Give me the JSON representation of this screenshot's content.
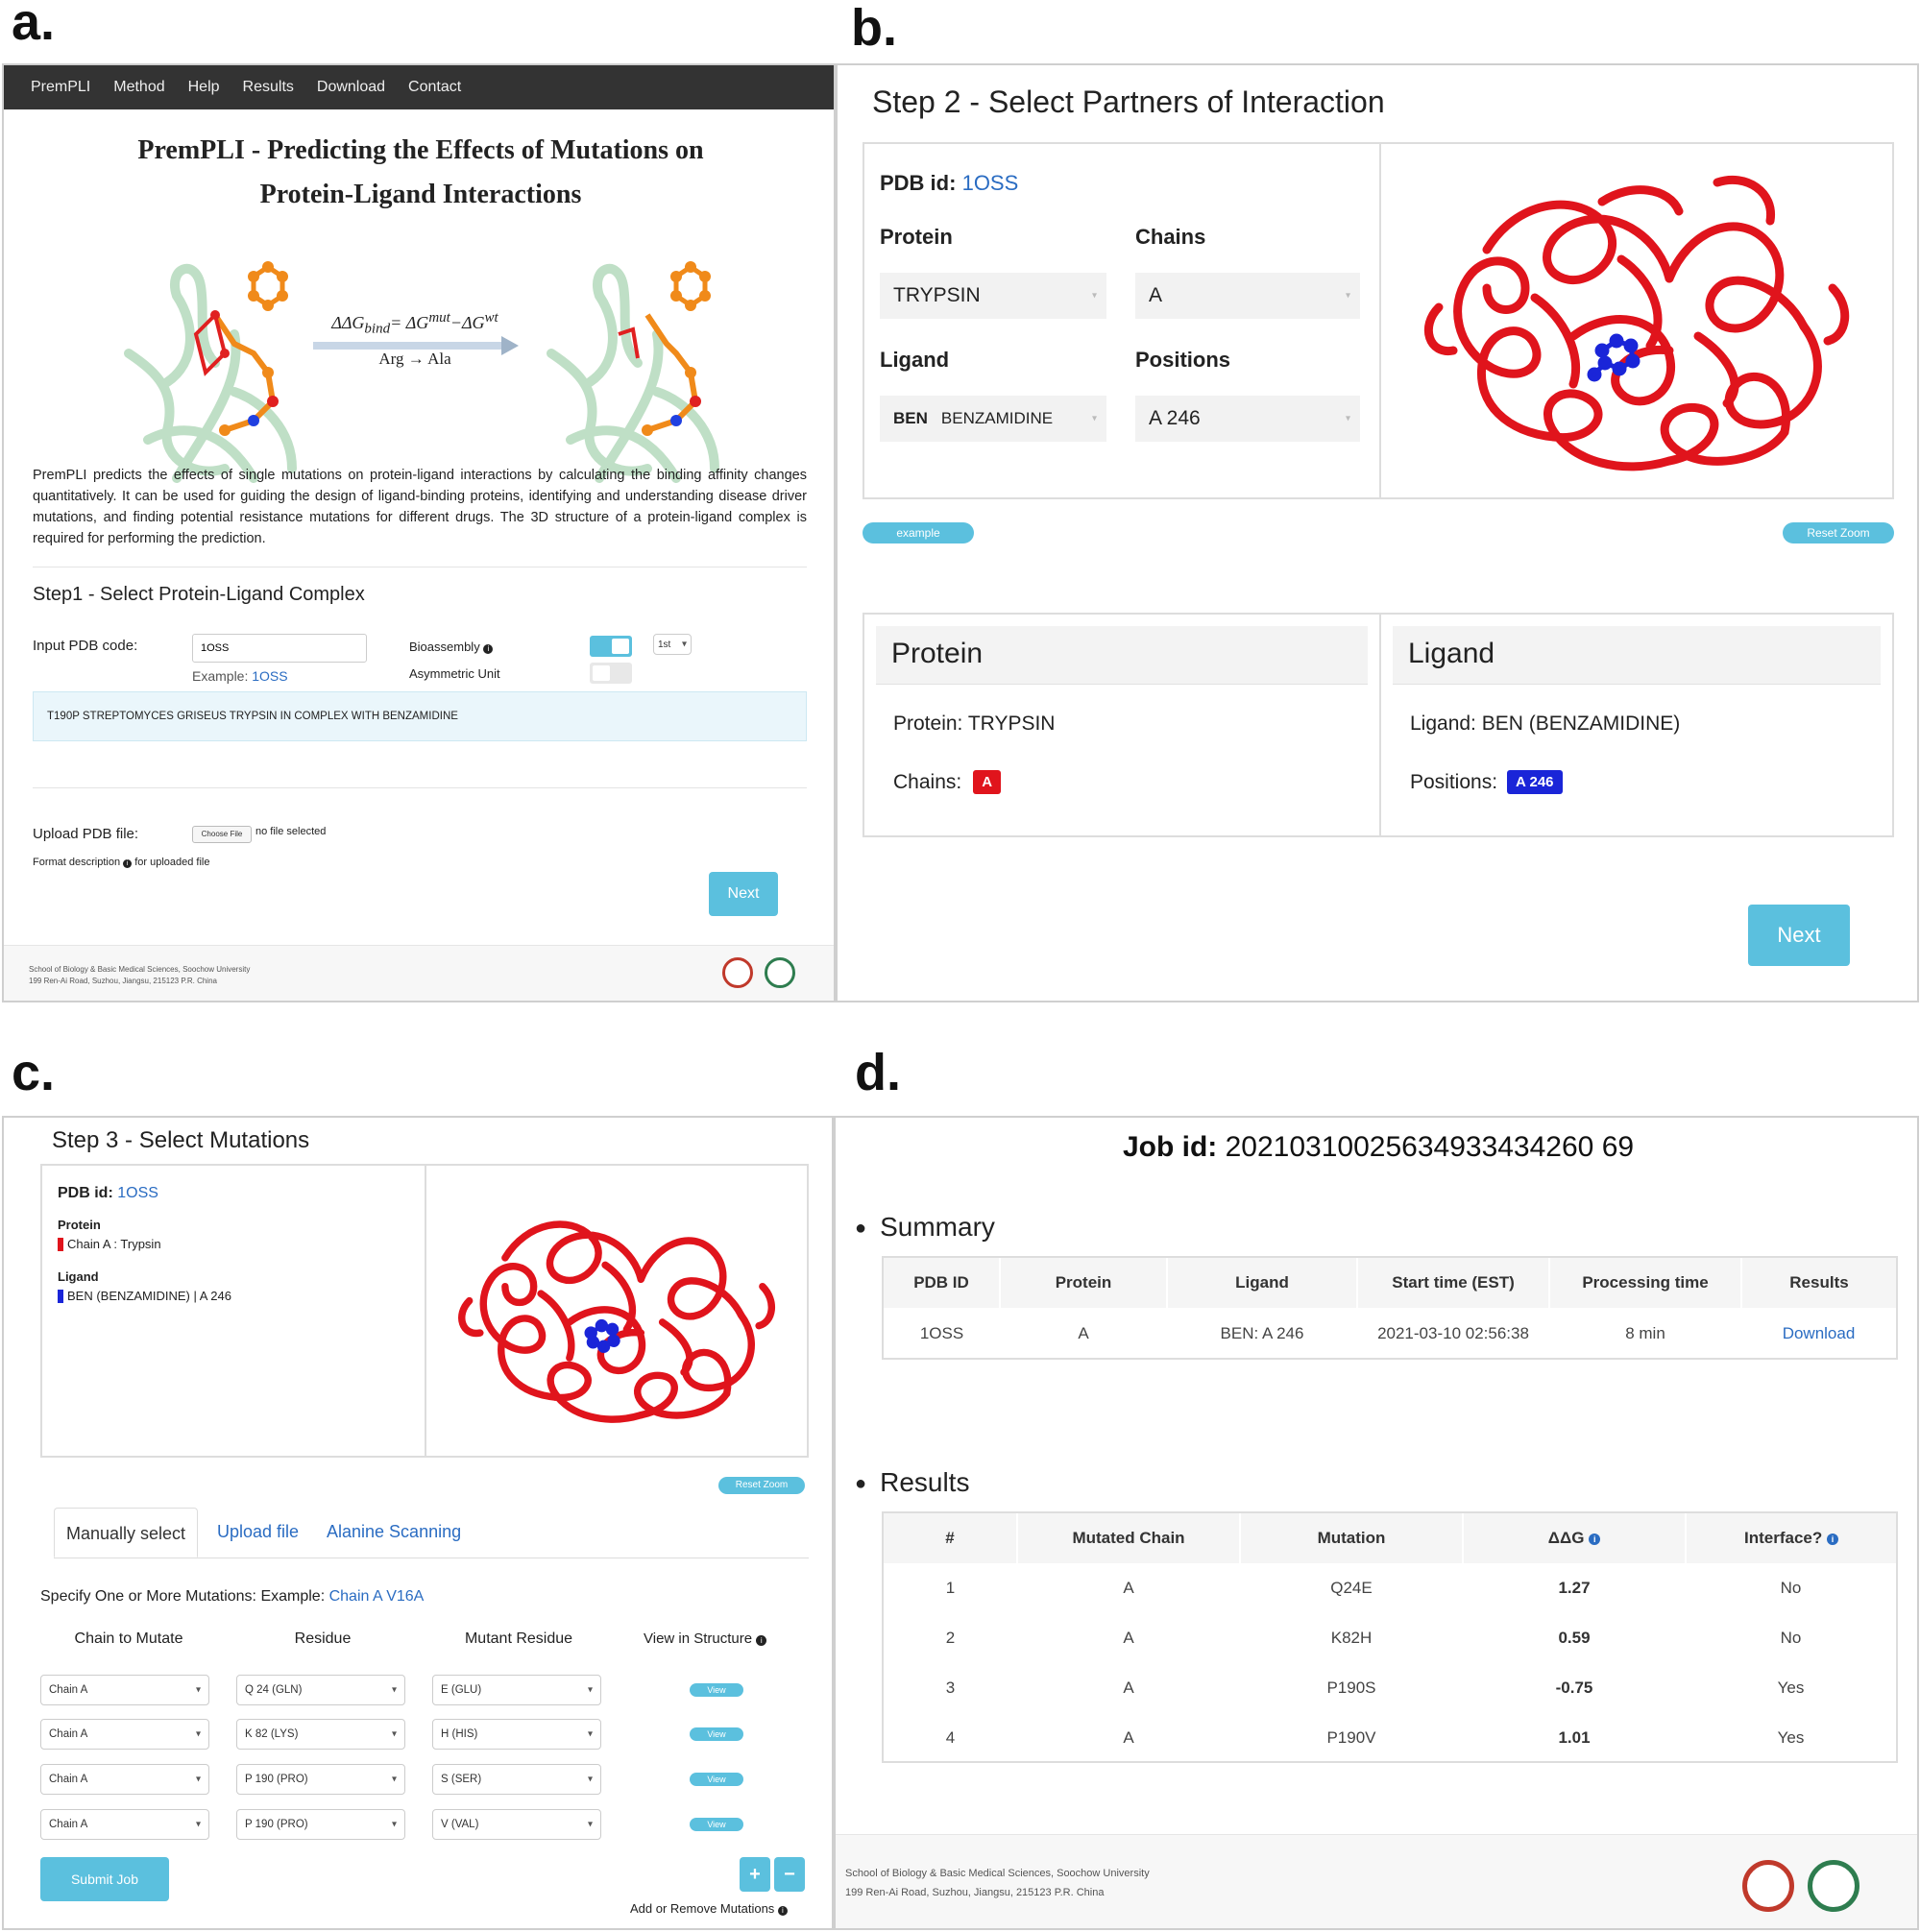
{
  "labels": {
    "a": "a.",
    "b": "b.",
    "c": "c.",
    "d": "d."
  },
  "a": {
    "nav": [
      "PremPLI",
      "Method",
      "Help",
      "Results",
      "Download",
      "Contact"
    ],
    "title_line1": "PremPLI - Predicting the Effects of Mutations on",
    "title_line2": "Protein-Ligand Interactions",
    "formula_lhs": "ΔΔG",
    "formula_sub_bind": "bind",
    "formula_eq": "= ΔG",
    "formula_sup_mut": "mut",
    "formula_minus": "−ΔG",
    "formula_sup_wt": "wt",
    "mutation_label": "Arg → Ala",
    "description": "PremPLI predicts the effects of single mutations on protein-ligand interactions by calculating the binding affinity changes quantitatively. It can be used for guiding the design of ligand-binding proteins, identifying and understanding disease driver mutations, and finding potential resistance mutations for different drugs. The 3D structure of a protein-ligand complex is required for performing the prediction.",
    "step1": "Step1 - Select Protein-Ligand Complex",
    "input_label": "Input PDB code:",
    "input_value": "1OSS",
    "example_prefix": "Example: ",
    "example_link": "1OSS",
    "bioassembly": "Bioassembly",
    "asym_unit": "Asymmetric Unit",
    "assembly_select": "1st",
    "complex_title": "T190P STREPTOMYCES GRISEUS TRYPSIN IN COMPLEX WITH BENZAMIDINE",
    "upload_label": "Upload PDB file:",
    "choose_file": "Choose File",
    "no_file": "no file selected",
    "format_desc": "Format description",
    "format_suffix": "for uploaded file",
    "next": "Next",
    "footer1": "School of Biology & Basic Medical Sciences, Soochow University",
    "footer2": "199 Ren-Ai Road, Suzhou, Jiangsu, 215123 P.R. China"
  },
  "b": {
    "step2": "Step 2 - Select Partners of Interaction",
    "pdb_label": "PDB id:",
    "pdb_value": "1OSS",
    "protein_h": "Protein",
    "chains_h": "Chains",
    "protein_sel": "TRYPSIN",
    "chain_sel": "A",
    "ligand_h": "Ligand",
    "positions_h": "Positions",
    "ligand_code": "BEN",
    "ligand_name": "BENZAMIDINE",
    "position_sel": "A 246",
    "example_btn": "example",
    "reset_zoom": "Reset Zoom",
    "protein_card_title": "Protein",
    "protein_line": "Protein: TRYPSIN",
    "chains_label": "Chains:",
    "chain_badge": "A",
    "ligand_card_title": "Ligand",
    "ligand_line": "Ligand: BEN (BENZAMIDINE)",
    "positions_label": "Positions:",
    "position_badge": "A 246",
    "next": "Next"
  },
  "c": {
    "step3": "Step 3 - Select Mutations",
    "pdb_label": "PDB id:",
    "pdb_value": "1OSS",
    "protein_h": "Protein",
    "protein_line": "Chain A : Trypsin",
    "ligand_h": "Ligand",
    "ligand_line": "BEN (BENZAMIDINE) | A 246",
    "reset_zoom": "Reset Zoom",
    "tabs": [
      "Manually select",
      "Upload file",
      "Alanine Scanning"
    ],
    "specify": "Specify One or More Mutations:",
    "example_prefix": "Example:",
    "example_link": "Chain A V16A",
    "col_heads": [
      "Chain to Mutate",
      "Residue",
      "Mutant Residue",
      "View in Structure"
    ],
    "rows": [
      {
        "chain": "Chain A",
        "residue": "Q 24 (GLN)",
        "mutant": "E (GLU)",
        "view": "View"
      },
      {
        "chain": "Chain A",
        "residue": "K 82 (LYS)",
        "mutant": "H (HIS)",
        "view": "View"
      },
      {
        "chain": "Chain A",
        "residue": "P 190 (PRO)",
        "mutant": "S (SER)",
        "view": "View"
      },
      {
        "chain": "Chain A",
        "residue": "P 190 (PRO)",
        "mutant": "V (VAL)",
        "view": "View"
      }
    ],
    "submit": "Submit Job",
    "plus": "+",
    "minus": "−",
    "add_remove": "Add or Remove Mutations"
  },
  "d": {
    "job_label": "Job id:",
    "job_id": "20210310025634933434260 69",
    "summary_h": "Summary",
    "summary_cols": [
      "PDB ID",
      "Protein",
      "Ligand",
      "Start time (EST)",
      "Processing time",
      "Results"
    ],
    "summary_row": [
      "1OSS",
      "A",
      "BEN: A 246",
      "2021-03-10 02:56:38",
      "8 min",
      "Download"
    ],
    "results_h": "Results",
    "results_cols": [
      "#",
      "Mutated Chain",
      "Mutation",
      "ΔΔG",
      "Interface?"
    ],
    "results_rows": [
      [
        "1",
        "A",
        "Q24E",
        "1.27",
        "No"
      ],
      [
        "2",
        "A",
        "K82H",
        "0.59",
        "No"
      ],
      [
        "3",
        "A",
        "P190S",
        "-0.75",
        "Yes"
      ],
      [
        "4",
        "A",
        "P190V",
        "1.01",
        "Yes"
      ]
    ],
    "footer1": "School of Biology & Basic Medical Sciences, Soochow University",
    "footer2": "199 Ren-Ai Road, Suzhou, Jiangsu, 215123 P.R. China"
  },
  "colors": {
    "accent": "#5bc0de",
    "link": "#2a6cc2",
    "navbar": "#333333",
    "protein_red": "#e0141c",
    "ligand_blue": "#1a25d8"
  }
}
